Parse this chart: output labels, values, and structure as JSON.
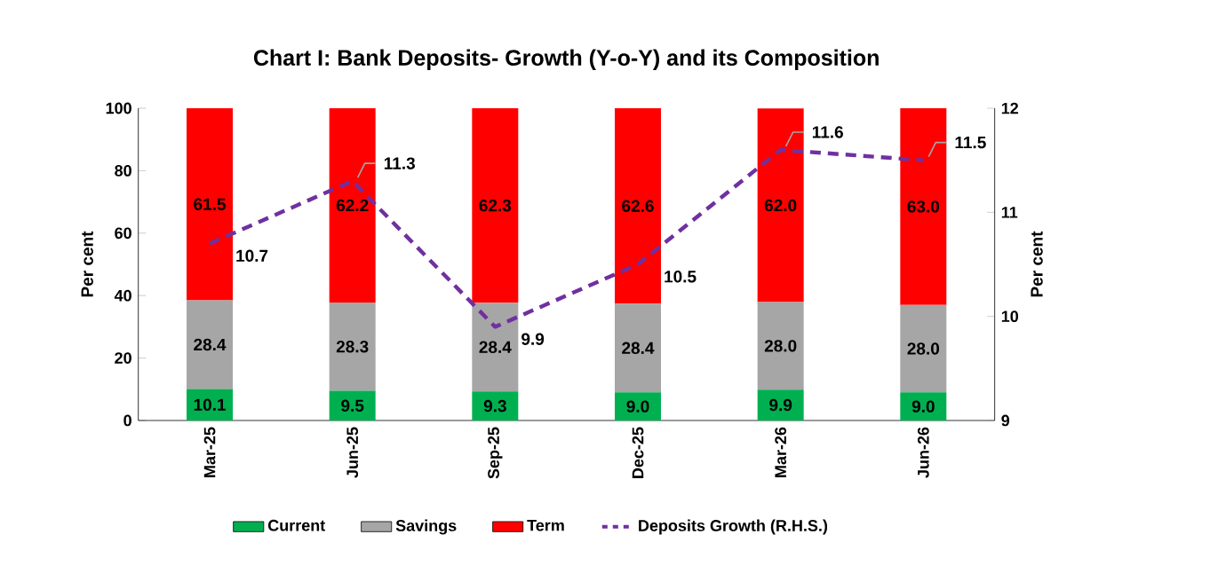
{
  "chart_data": {
    "type": "bar",
    "title": "Chart I:  Bank Deposits- Growth (Y-o-Y) and its Composition",
    "categories": [
      "Mar-25",
      "Jun-25",
      "Sep-25",
      "Dec-25",
      "Mar-26",
      "Jun-26"
    ],
    "stacked": true,
    "ylabel": "Per cent",
    "y2label": "Per cent",
    "ylim": [
      0,
      100
    ],
    "yticks": [
      0,
      20,
      40,
      60,
      80,
      100
    ],
    "y2lim": [
      9,
      12
    ],
    "y2ticks": [
      9,
      10,
      11,
      12
    ],
    "legend": "bottom",
    "grid": false,
    "series": [
      {
        "name": "Current",
        "color": "#00b050",
        "values": [
          10.1,
          9.5,
          9.3,
          9.0,
          9.9,
          9.0
        ],
        "value_labels": [
          "10.1",
          "9.5",
          "9.3",
          "9.0",
          "9.9",
          "9.0"
        ]
      },
      {
        "name": "Savings",
        "color": "#a6a6a6",
        "values": [
          28.4,
          28.3,
          28.4,
          28.4,
          28.0,
          28.0
        ],
        "value_labels": [
          "28.4",
          "28.3",
          "28.4",
          "28.4",
          "28.0",
          "28.0"
        ]
      },
      {
        "name": "Term",
        "color": "#ff0000",
        "values": [
          61.5,
          62.2,
          62.3,
          62.6,
          62.0,
          63.0
        ],
        "value_labels": [
          "61.5",
          "62.2",
          "62.3",
          "62.6",
          "62.0",
          "63.0"
        ]
      },
      {
        "name": "Deposits Growth (R.H.S.)",
        "type": "line",
        "axis": "y2",
        "color": "#7030a0",
        "line_style": "dashed",
        "marker": "none",
        "values": [
          10.7,
          11.3,
          9.9,
          10.5,
          11.6,
          11.5
        ],
        "value_labels": [
          "10.7",
          "11.3",
          "9.9",
          "10.5",
          "11.6",
          "11.5"
        ]
      }
    ]
  }
}
